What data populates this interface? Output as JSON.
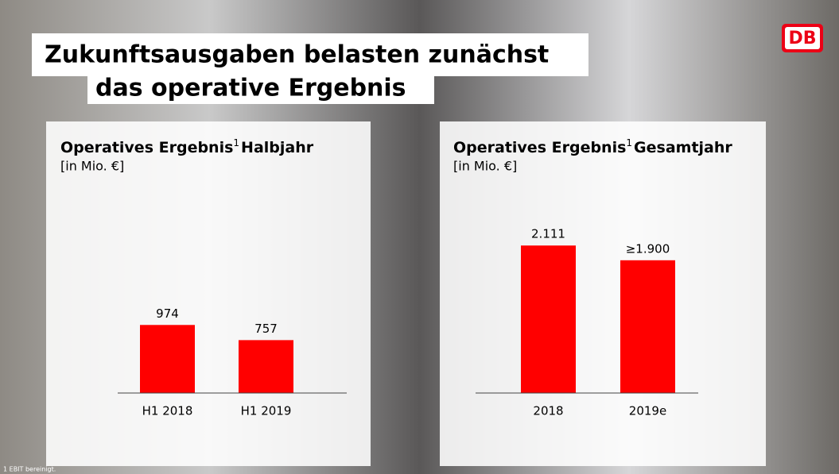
{
  "slide_title": [
    "Zukunftsausgaben belasten zunächst",
    "das operative Ergebnis"
  ],
  "logo": "DB",
  "footnote": "1  EBIT bereinigt.",
  "chart_data": [
    {
      "type": "bar",
      "title": "Operatives Ergebnis",
      "title_mark": "1",
      "title_period": "Halbjahr",
      "subtitle": "[in Mio. €]",
      "categories": [
        "H1 2018",
        "H1 2019"
      ],
      "values": [
        974,
        757
      ],
      "color": "#ff0000",
      "ylim": [
        0,
        2500
      ]
    },
    {
      "type": "bar",
      "title": "Operatives Ergebnis",
      "title_mark": "1",
      "title_period": "Gesamtjahr",
      "subtitle": "[in Mio. €]",
      "categories": [
        "2018",
        "2019e"
      ],
      "values": [
        2111,
        1900
      ],
      "value_labels": [
        "2.111",
        "≥1.900"
      ],
      "color": "#ff0000",
      "ylim": [
        0,
        2500
      ]
    }
  ]
}
